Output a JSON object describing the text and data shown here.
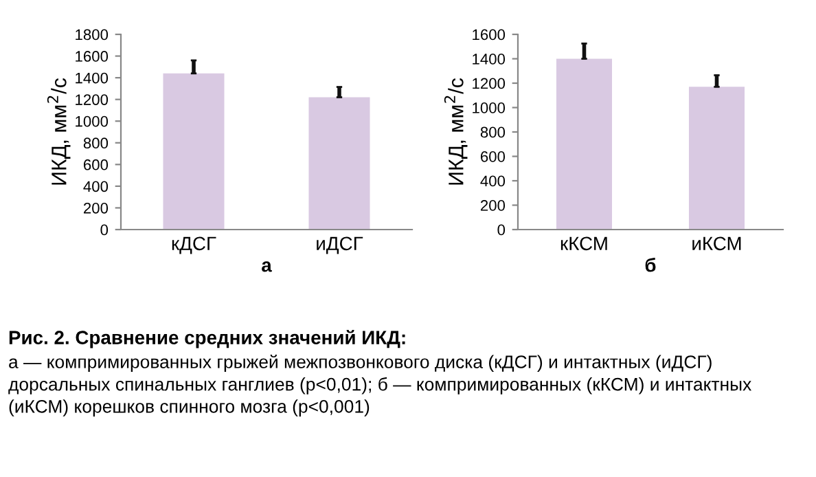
{
  "chart_data": [
    {
      "type": "bar",
      "xlabel": "а",
      "ylabel": "ИКД, мм$^{2}$/с",
      "categories": [
        "кДСГ",
        "иДСГ"
      ],
      "values": [
        1440,
        1220
      ],
      "errors": [
        [
          1440,
          1560
        ],
        [
          1220,
          1315
        ]
      ],
      "color": "#d9c9e2",
      "ylim": [
        0,
        1800
      ],
      "yticks": [
        0,
        200,
        400,
        600,
        800,
        1000,
        1200,
        1400,
        1600,
        1800
      ],
      "grid": false,
      "legend": false,
      "annotations": [
        "Рис. 2. Сравнение средних значений ИКД:",
        "а — компримированных грыжей межпозвонкового диска (кДСГ) и интактных (иДСГ) дорсальных спинальных ганглиев (p<0,01); б — компримированных (кКСМ) и интактных (иКСМ) корешков спинного мозга (p<0,001)"
      ]
    },
    {
      "type": "bar",
      "xlabel": "б",
      "ylabel": "ИКД, мм$^{2}$/с",
      "categories": [
        "кКСМ",
        "иКСМ"
      ],
      "values": [
        1400,
        1170
      ],
      "errors": [
        [
          1400,
          1525
        ],
        [
          1170,
          1265
        ]
      ],
      "color": "#d9c9e2",
      "ylim": [
        0,
        1600
      ],
      "yticks": [
        0,
        200,
        400,
        600,
        800,
        1000,
        1200,
        1400,
        1600
      ],
      "grid": false,
      "legend": false
    }
  ]
}
